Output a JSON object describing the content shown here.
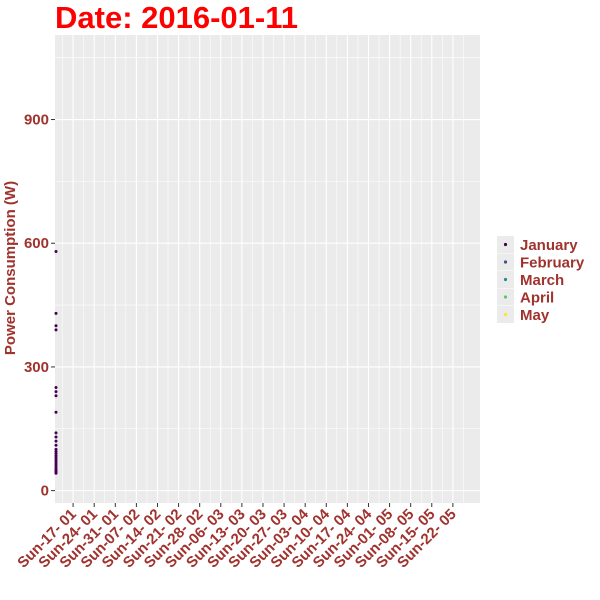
{
  "chart_data": {
    "type": "scatter",
    "title": "Date: 2016-01-11",
    "xlabel": "",
    "ylabel": "Power Consumption (W)",
    "ylim": [
      -30,
      1105
    ],
    "yticks": [
      0,
      300,
      600,
      900
    ],
    "x_categories": [
      "Sun-17- 01",
      "Sun-24- 01",
      "Sun-31- 01",
      "Sun-07- 02",
      "Sun-14- 02",
      "Sun-21- 02",
      "Sun-28- 02",
      "Sun-06- 03",
      "Sun-13- 03",
      "Sun-20- 03",
      "Sun-27- 03",
      "Sun-03- 04",
      "Sun-10- 04",
      "Sun-17- 04",
      "Sun-24- 04",
      "Sun-01- 05",
      "Sun-08- 05",
      "Sun-15- 05",
      "Sun-22- 05"
    ],
    "grid": true,
    "legend_position": "right",
    "legend": [
      {
        "name": "January",
        "color": "#440154"
      },
      {
        "name": "February",
        "color": "#3B528B"
      },
      {
        "name": "March",
        "color": "#21908C"
      },
      {
        "name": "April",
        "color": "#5DC863"
      },
      {
        "name": "May",
        "color": "#FDE725"
      }
    ],
    "series": [
      {
        "name": "January",
        "x": [
          "2016-01-11",
          "2016-01-11",
          "2016-01-11",
          "2016-01-11",
          "2016-01-11",
          "2016-01-11",
          "2016-01-11",
          "2016-01-11",
          "2016-01-11",
          "2016-01-11",
          "2016-01-11",
          "2016-01-11",
          "2016-01-11",
          "2016-01-11",
          "2016-01-11",
          "2016-01-11",
          "2016-01-11",
          "2016-01-11",
          "2016-01-11",
          "2016-01-11",
          "2016-01-11",
          "2016-01-11",
          "2016-01-11",
          "2016-01-11",
          "2016-01-11",
          "2016-01-11",
          "2016-01-11"
        ],
        "y": [
          580,
          430,
          400,
          390,
          250,
          240,
          230,
          190,
          140,
          130,
          120,
          110,
          100,
          95,
          90,
          85,
          80,
          75,
          70,
          65,
          60,
          55,
          50,
          48,
          46,
          44,
          42
        ]
      }
    ],
    "x_range_days": [
      0,
      141
    ],
    "first_tick_date": "2016-01-17",
    "tick_spacing_days": 7,
    "title_color": "#FF0000",
    "label_color": "#A0332E",
    "panel_color": "#EBEBEB",
    "grid_color": "#FFFFFF"
  }
}
